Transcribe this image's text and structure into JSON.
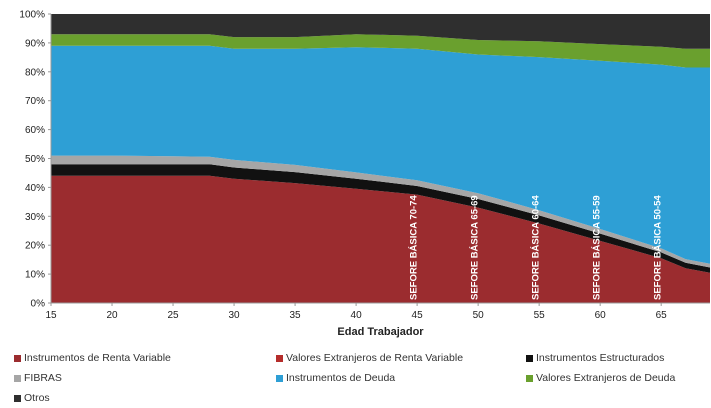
{
  "chart_data": {
    "type": "area",
    "stacked": true,
    "xlabel": "Edad Trabajador",
    "x": [
      15,
      20,
      25,
      28,
      30,
      35,
      40,
      45,
      50,
      55,
      60,
      65,
      67,
      69
    ],
    "x_ticks": [
      15,
      20,
      25,
      30,
      35,
      40,
      45,
      50,
      55,
      60,
      65
    ],
    "xlim": [
      15,
      69
    ],
    "ylim": [
      0,
      100
    ],
    "y_ticks": [
      "0%",
      "10%",
      "20%",
      "30%",
      "40%",
      "50%",
      "60%",
      "70%",
      "80%",
      "90%",
      "100%"
    ],
    "series": [
      {
        "name": "Instrumentos de Renta Variable",
        "color": "#9b2c2f",
        "values": [
          44,
          44,
          44,
          44,
          43,
          41.5,
          39.5,
          37.5,
          33,
          27.5,
          21.5,
          15.5,
          12,
          10.5
        ]
      },
      {
        "name": "Valores Extranjeros de Renta Variable",
        "color": "#b52d2b",
        "values": [
          0,
          0,
          0,
          0,
          0,
          0,
          0,
          0,
          0,
          0,
          0,
          0,
          0,
          0
        ]
      },
      {
        "name": "Instrumentos Estructurados",
        "color": "#111111",
        "values": [
          4,
          4,
          4,
          4,
          3.9,
          3.8,
          3.5,
          3,
          3,
          2.8,
          2.5,
          2,
          1.9,
          1.8
        ]
      },
      {
        "name": "FIBRAS",
        "color": "#a6a6a6",
        "values": [
          3,
          3,
          2.8,
          2.6,
          2.6,
          2.5,
          2.2,
          2,
          2,
          1.8,
          1.6,
          1.4,
          1.3,
          1.3
        ]
      },
      {
        "name": "Instrumentos de Deuda",
        "color": "#2e9fd5",
        "values": [
          38,
          38,
          38.2,
          38.4,
          38.5,
          40.2,
          43.3,
          45.5,
          48,
          53,
          58.2,
          63.6,
          66.3,
          67.9
        ]
      },
      {
        "name": "Valores Extranjeros de Deuda",
        "color": "#6aa02e",
        "values": [
          4,
          4,
          4,
          4,
          4,
          4,
          4.5,
          4.5,
          5,
          5.5,
          5.8,
          6.2,
          6.5,
          6.5
        ]
      },
      {
        "name": "Otros",
        "color": "#2f2f2f",
        "values": [
          7,
          7,
          7,
          7,
          8,
          8,
          7,
          7.5,
          9,
          9.4,
          10.4,
          11.3,
          12,
          12
        ]
      }
    ],
    "annotations": [
      {
        "text": "SEFORE BÁSICA 70-74",
        "x": 45
      },
      {
        "text": "SEFORE BÁSICA 65-69",
        "x": 50
      },
      {
        "text": "SEFORE BÁSICA 60-64",
        "x": 55
      },
      {
        "text": "SEFORE BÁSICA 55-59",
        "x": 60
      },
      {
        "text": "SEFORE BÁSICA 50-54",
        "x": 65
      }
    ],
    "grid": false,
    "legend_position": "bottom"
  }
}
